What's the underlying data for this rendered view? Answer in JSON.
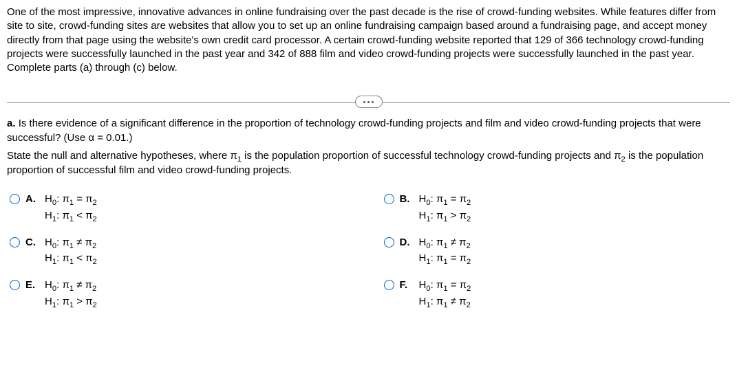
{
  "intro": "One of the most impressive, innovative advances in online fundraising over the past decade is the rise of crowd-funding websites. While features differ from site to site, crowd-funding sites are websites that allow you to set up an online fundraising campaign based around a fundraising page, and accept money directly from that page using the website's own credit card processor. A certain crowd-funding website reported that 129 of 366 technology crowd-funding projects were successfully launched in the past year and 342 of 888 film and video crowd-funding projects were successfully launched in the past year. Complete parts (a) through (c) below.",
  "part_a": {
    "label": "a.",
    "q1": "Is there evidence of a significant difference in the proportion of technology crowd-funding projects and film and video crowd-funding projects that were successful? (Use α = 0.01.)",
    "q2_pre": "State the null and alternative hypotheses, where π",
    "q2_sub1": "1",
    "q2_mid": " is the population proportion of successful  technology crowd-funding projects and π",
    "q2_sub2": "2",
    "q2_post": " is the population proportion of successful film and video crowd-funding projects."
  },
  "symbols": {
    "H0": "H",
    "H0sub": "0",
    "H1": "H",
    "H1sub": "1",
    "pi": "π",
    "s1": "1",
    "s2": "2",
    "eq": " = ",
    "ne": " ≠ ",
    "lt": " < ",
    "gt": " > ",
    "colon": ": "
  },
  "options": {
    "A": {
      "letter": "A.",
      "h0_rel": "eq",
      "h1_rel": "lt"
    },
    "B": {
      "letter": "B.",
      "h0_rel": "eq",
      "h1_rel": "gt"
    },
    "C": {
      "letter": "C.",
      "h0_rel": "ne",
      "h1_rel": "lt"
    },
    "D": {
      "letter": "D.",
      "h0_rel": "ne",
      "h1_rel": "eq"
    },
    "E": {
      "letter": "E.",
      "h0_rel": "ne",
      "h1_rel": "gt"
    },
    "F": {
      "letter": "F.",
      "h0_rel": "eq",
      "h1_rel": "ne"
    }
  },
  "style": {
    "radio_border": "#0066cc",
    "text_color": "#000000",
    "divider_color": "#888888"
  }
}
